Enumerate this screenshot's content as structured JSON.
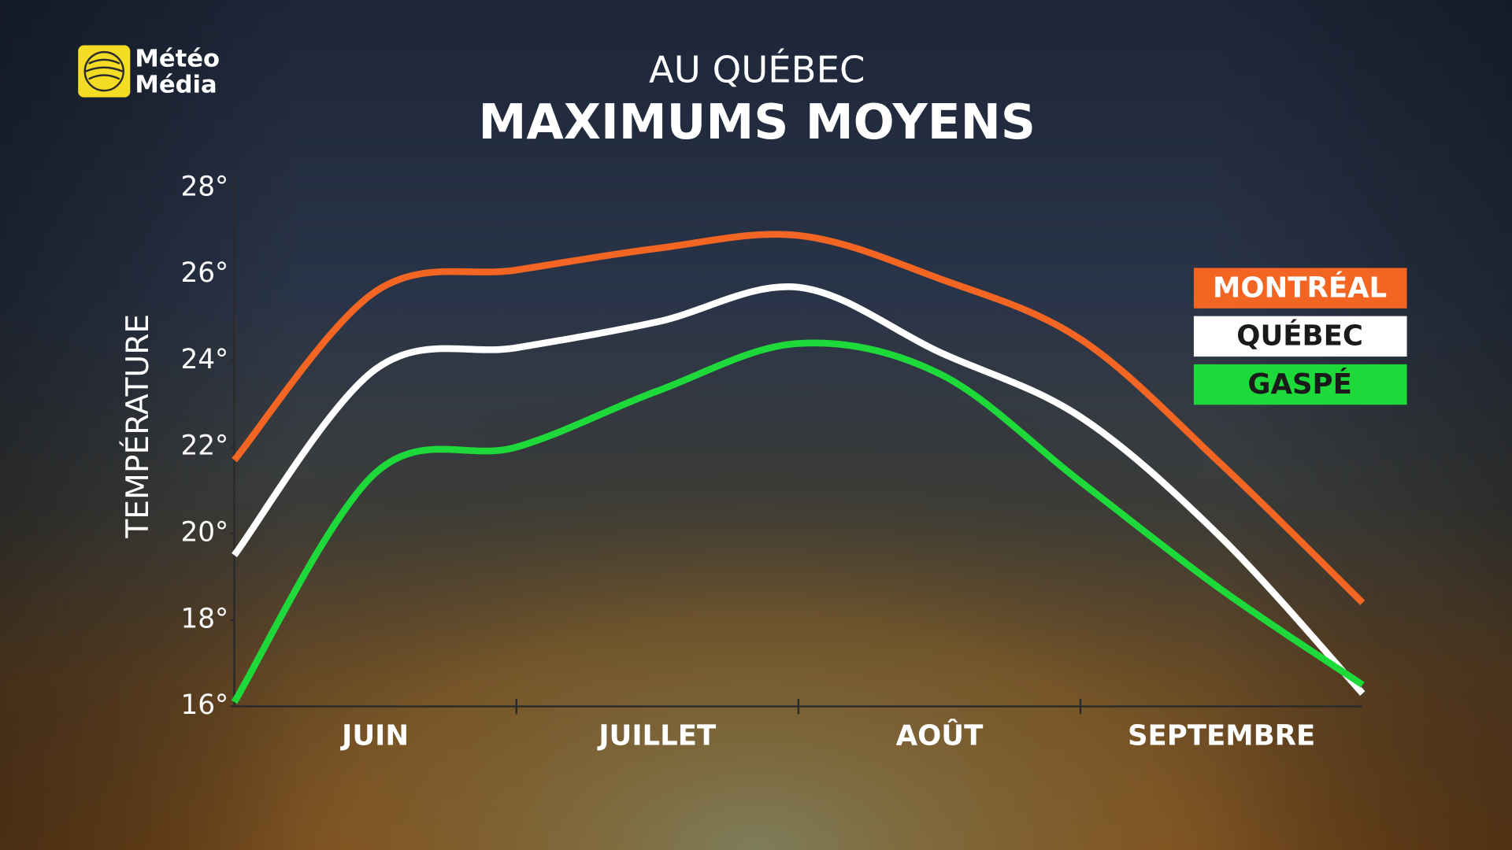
{
  "logo": [
    "Météo",
    "Média"
  ],
  "chart_data": {
    "type": "line",
    "title": "AU QUÉBEC",
    "subtitle": "MAXIMUMS MOYENS",
    "y_label": "TEMPÉRATURE",
    "categories": [
      null,
      "JUIN",
      null,
      "JUILLET",
      null,
      "AOÛT",
      null,
      "SEPTEMBRE",
      null
    ],
    "ylim": [
      16,
      28
    ],
    "yticks": [
      {
        "value": 16,
        "label": "16°"
      },
      {
        "value": 18,
        "label": "18°"
      },
      {
        "value": 20,
        "label": "20°"
      },
      {
        "value": 22,
        "label": "22°"
      },
      {
        "value": 24,
        "label": "24°"
      },
      {
        "value": 26,
        "label": "26°"
      },
      {
        "value": 28,
        "label": "28°"
      }
    ],
    "legend": "right",
    "series": [
      {
        "name": "MONTRÉAL",
        "color": "#f26522",
        "values": [
          21.7,
          25.6,
          26.1,
          26.6,
          26.9,
          25.9,
          24.5,
          21.6,
          18.4
        ]
      },
      {
        "name": "QUÉBEC",
        "color": "#ffffff",
        "values": [
          19.5,
          23.8,
          24.3,
          24.9,
          25.7,
          24.2,
          22.7,
          19.9,
          16.3
        ]
      },
      {
        "name": "GASPÉ",
        "color": "#1ed93a",
        "values": [
          16.1,
          21.4,
          22.0,
          23.3,
          24.4,
          23.7,
          21.2,
          18.7,
          16.5
        ]
      }
    ]
  }
}
